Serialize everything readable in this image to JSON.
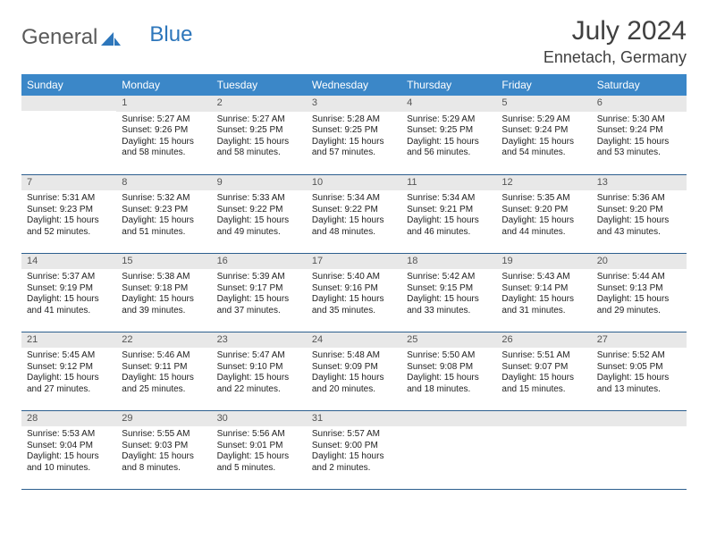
{
  "brand": {
    "part1": "General",
    "part2": "Blue"
  },
  "title": "July 2024",
  "location": "Ennetach, Germany",
  "colors": {
    "header_bg": "#3b87c8",
    "header_text": "#ffffff",
    "daynum_bg": "#e8e8e8",
    "daynum_text": "#555555",
    "row_border": "#2d5f8f",
    "brand_gray": "#5a5a5a",
    "brand_blue": "#2d76bb",
    "page_bg": "#ffffff",
    "body_text": "#222222"
  },
  "fonts": {
    "body_pt": 10,
    "daynum_pt": 11,
    "header_pt": 12,
    "month_pt": 30,
    "location_pt": 18
  },
  "day_headers": [
    "Sunday",
    "Monday",
    "Tuesday",
    "Wednesday",
    "Thursday",
    "Friday",
    "Saturday"
  ],
  "weeks": [
    [
      {
        "n": "",
        "sunrise": "",
        "sunset": "",
        "day1": "",
        "day2": ""
      },
      {
        "n": "1",
        "sunrise": "Sunrise: 5:27 AM",
        "sunset": "Sunset: 9:26 PM",
        "day1": "Daylight: 15 hours",
        "day2": "and 58 minutes."
      },
      {
        "n": "2",
        "sunrise": "Sunrise: 5:27 AM",
        "sunset": "Sunset: 9:25 PM",
        "day1": "Daylight: 15 hours",
        "day2": "and 58 minutes."
      },
      {
        "n": "3",
        "sunrise": "Sunrise: 5:28 AM",
        "sunset": "Sunset: 9:25 PM",
        "day1": "Daylight: 15 hours",
        "day2": "and 57 minutes."
      },
      {
        "n": "4",
        "sunrise": "Sunrise: 5:29 AM",
        "sunset": "Sunset: 9:25 PM",
        "day1": "Daylight: 15 hours",
        "day2": "and 56 minutes."
      },
      {
        "n": "5",
        "sunrise": "Sunrise: 5:29 AM",
        "sunset": "Sunset: 9:24 PM",
        "day1": "Daylight: 15 hours",
        "day2": "and 54 minutes."
      },
      {
        "n": "6",
        "sunrise": "Sunrise: 5:30 AM",
        "sunset": "Sunset: 9:24 PM",
        "day1": "Daylight: 15 hours",
        "day2": "and 53 minutes."
      }
    ],
    [
      {
        "n": "7",
        "sunrise": "Sunrise: 5:31 AM",
        "sunset": "Sunset: 9:23 PM",
        "day1": "Daylight: 15 hours",
        "day2": "and 52 minutes."
      },
      {
        "n": "8",
        "sunrise": "Sunrise: 5:32 AM",
        "sunset": "Sunset: 9:23 PM",
        "day1": "Daylight: 15 hours",
        "day2": "and 51 minutes."
      },
      {
        "n": "9",
        "sunrise": "Sunrise: 5:33 AM",
        "sunset": "Sunset: 9:22 PM",
        "day1": "Daylight: 15 hours",
        "day2": "and 49 minutes."
      },
      {
        "n": "10",
        "sunrise": "Sunrise: 5:34 AM",
        "sunset": "Sunset: 9:22 PM",
        "day1": "Daylight: 15 hours",
        "day2": "and 48 minutes."
      },
      {
        "n": "11",
        "sunrise": "Sunrise: 5:34 AM",
        "sunset": "Sunset: 9:21 PM",
        "day1": "Daylight: 15 hours",
        "day2": "and 46 minutes."
      },
      {
        "n": "12",
        "sunrise": "Sunrise: 5:35 AM",
        "sunset": "Sunset: 9:20 PM",
        "day1": "Daylight: 15 hours",
        "day2": "and 44 minutes."
      },
      {
        "n": "13",
        "sunrise": "Sunrise: 5:36 AM",
        "sunset": "Sunset: 9:20 PM",
        "day1": "Daylight: 15 hours",
        "day2": "and 43 minutes."
      }
    ],
    [
      {
        "n": "14",
        "sunrise": "Sunrise: 5:37 AM",
        "sunset": "Sunset: 9:19 PM",
        "day1": "Daylight: 15 hours",
        "day2": "and 41 minutes."
      },
      {
        "n": "15",
        "sunrise": "Sunrise: 5:38 AM",
        "sunset": "Sunset: 9:18 PM",
        "day1": "Daylight: 15 hours",
        "day2": "and 39 minutes."
      },
      {
        "n": "16",
        "sunrise": "Sunrise: 5:39 AM",
        "sunset": "Sunset: 9:17 PM",
        "day1": "Daylight: 15 hours",
        "day2": "and 37 minutes."
      },
      {
        "n": "17",
        "sunrise": "Sunrise: 5:40 AM",
        "sunset": "Sunset: 9:16 PM",
        "day1": "Daylight: 15 hours",
        "day2": "and 35 minutes."
      },
      {
        "n": "18",
        "sunrise": "Sunrise: 5:42 AM",
        "sunset": "Sunset: 9:15 PM",
        "day1": "Daylight: 15 hours",
        "day2": "and 33 minutes."
      },
      {
        "n": "19",
        "sunrise": "Sunrise: 5:43 AM",
        "sunset": "Sunset: 9:14 PM",
        "day1": "Daylight: 15 hours",
        "day2": "and 31 minutes."
      },
      {
        "n": "20",
        "sunrise": "Sunrise: 5:44 AM",
        "sunset": "Sunset: 9:13 PM",
        "day1": "Daylight: 15 hours",
        "day2": "and 29 minutes."
      }
    ],
    [
      {
        "n": "21",
        "sunrise": "Sunrise: 5:45 AM",
        "sunset": "Sunset: 9:12 PM",
        "day1": "Daylight: 15 hours",
        "day2": "and 27 minutes."
      },
      {
        "n": "22",
        "sunrise": "Sunrise: 5:46 AM",
        "sunset": "Sunset: 9:11 PM",
        "day1": "Daylight: 15 hours",
        "day2": "and 25 minutes."
      },
      {
        "n": "23",
        "sunrise": "Sunrise: 5:47 AM",
        "sunset": "Sunset: 9:10 PM",
        "day1": "Daylight: 15 hours",
        "day2": "and 22 minutes."
      },
      {
        "n": "24",
        "sunrise": "Sunrise: 5:48 AM",
        "sunset": "Sunset: 9:09 PM",
        "day1": "Daylight: 15 hours",
        "day2": "and 20 minutes."
      },
      {
        "n": "25",
        "sunrise": "Sunrise: 5:50 AM",
        "sunset": "Sunset: 9:08 PM",
        "day1": "Daylight: 15 hours",
        "day2": "and 18 minutes."
      },
      {
        "n": "26",
        "sunrise": "Sunrise: 5:51 AM",
        "sunset": "Sunset: 9:07 PM",
        "day1": "Daylight: 15 hours",
        "day2": "and 15 minutes."
      },
      {
        "n": "27",
        "sunrise": "Sunrise: 5:52 AM",
        "sunset": "Sunset: 9:05 PM",
        "day1": "Daylight: 15 hours",
        "day2": "and 13 minutes."
      }
    ],
    [
      {
        "n": "28",
        "sunrise": "Sunrise: 5:53 AM",
        "sunset": "Sunset: 9:04 PM",
        "day1": "Daylight: 15 hours",
        "day2": "and 10 minutes."
      },
      {
        "n": "29",
        "sunrise": "Sunrise: 5:55 AM",
        "sunset": "Sunset: 9:03 PM",
        "day1": "Daylight: 15 hours",
        "day2": "and 8 minutes."
      },
      {
        "n": "30",
        "sunrise": "Sunrise: 5:56 AM",
        "sunset": "Sunset: 9:01 PM",
        "day1": "Daylight: 15 hours",
        "day2": "and 5 minutes."
      },
      {
        "n": "31",
        "sunrise": "Sunrise: 5:57 AM",
        "sunset": "Sunset: 9:00 PM",
        "day1": "Daylight: 15 hours",
        "day2": "and 2 minutes."
      },
      {
        "n": "",
        "sunrise": "",
        "sunset": "",
        "day1": "",
        "day2": ""
      },
      {
        "n": "",
        "sunrise": "",
        "sunset": "",
        "day1": "",
        "day2": ""
      },
      {
        "n": "",
        "sunrise": "",
        "sunset": "",
        "day1": "",
        "day2": ""
      }
    ]
  ]
}
